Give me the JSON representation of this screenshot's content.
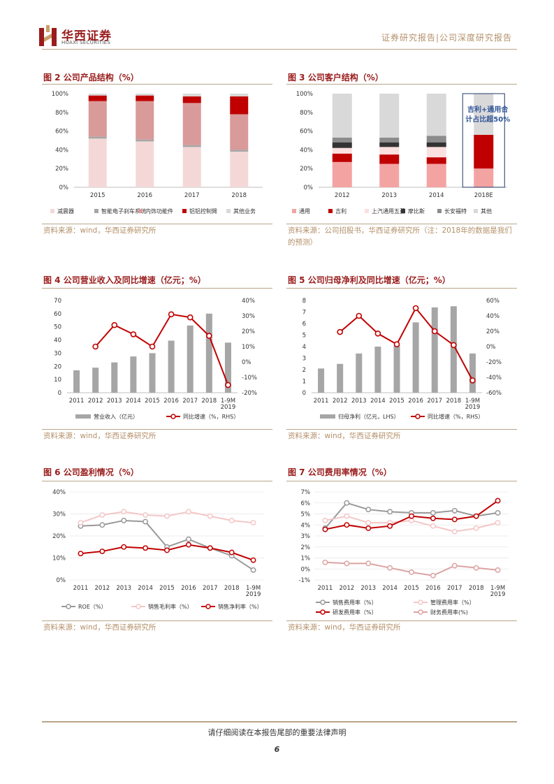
{
  "header": {
    "logo_cn": "华西证券",
    "logo_en": "HUAXI SECURITIES",
    "right": "证券研究报告|公司深度研究报告"
  },
  "figures": [
    {
      "title": "图 2 公司产品结构（%）",
      "source": "资料来源：wind，华西证券研究所",
      "chart_data": {
        "type": "bar",
        "stacked": true,
        "categories": [
          "2015",
          "2016",
          "2017",
          "2018"
        ],
        "series": [
          {
            "name": "减震器",
            "values": [
              52,
              49,
              43,
              38
            ],
            "color": "#f4d8d8"
          },
          {
            "name": "智能电子刹车系统",
            "values": [
              2,
              2,
              2,
              2
            ],
            "color": "#a6a6a6"
          },
          {
            "name": "内饰功能件",
            "values": [
              38,
              41,
              45,
              38
            ],
            "color": "#d99a9a"
          },
          {
            "name": "铝铝控制臂",
            "values": [
              6,
              6,
              7,
              19
            ],
            "color": "#c00000"
          },
          {
            "name": "其他业务",
            "values": [
              2,
              2,
              3,
              3
            ],
            "color": "#d9d9d9"
          }
        ],
        "y_ticks": [
          "0%",
          "20%",
          "40%",
          "60%",
          "80%",
          "100%"
        ],
        "ylim": [
          0,
          100
        ]
      }
    },
    {
      "title": "图 3 公司客户结构（%）",
      "source": "资料来源：公司招股书，华西证券研究所（注：2018年的数据是我们的预测）",
      "annotation": "吉利+通用合计占比超50%",
      "chart_data": {
        "type": "bar",
        "stacked": true,
        "categories": [
          "2012",
          "2013",
          "2014",
          "2018E"
        ],
        "series": [
          {
            "name": "通用",
            "values": [
              27,
              25,
              25,
              20
            ],
            "color": "#f4a3a3"
          },
          {
            "name": "吉利",
            "values": [
              9,
              10,
              7,
              36
            ],
            "color": "#c00000"
          },
          {
            "name": "上汽通用五菱",
            "values": [
              6,
              8,
              11,
              0
            ],
            "color": "#fbe0e0"
          },
          {
            "name": "摩比斯",
            "values": [
              6,
              5,
              5,
              0
            ],
            "color": "#333333"
          },
          {
            "name": "长安福特",
            "values": [
              5,
              5,
              7,
              0
            ],
            "color": "#8c8c8c"
          },
          {
            "name": "其他",
            "values": [
              47,
              47,
              45,
              44
            ],
            "color": "#d9d9d9"
          }
        ],
        "y_ticks": [
          "0%",
          "20%",
          "40%",
          "60%",
          "80%",
          "100%"
        ],
        "ylim": [
          0,
          100
        ]
      }
    },
    {
      "title": "图 4 公司营业收入及同比增速（亿元；%）",
      "source": "资料来源：wind，华西证券研究所",
      "chart_data": {
        "type": "bar",
        "categories": [
          "2011",
          "2012",
          "2013",
          "2014",
          "2015",
          "2016",
          "2017",
          "2018",
          "1-9M 2019"
        ],
        "bar_series": {
          "name": "营业收入（亿元）",
          "values": [
            17,
            19,
            23,
            27.5,
            30,
            39.5,
            51,
            60,
            38
          ]
        },
        "line_series": {
          "name": "同比增速（%，RHS）",
          "values": [
            null,
            10,
            24,
            18,
            10,
            31,
            29,
            17,
            -15
          ]
        },
        "y_left_ticks": [
          "0",
          "10",
          "20",
          "30",
          "40",
          "50",
          "60",
          "70"
        ],
        "y_right_ticks": [
          "-20%",
          "-10%",
          "0%",
          "10%",
          "20%",
          "30%",
          "40%"
        ],
        "ylim_left": [
          0,
          70
        ],
        "ylim_right": [
          -20,
          40
        ]
      }
    },
    {
      "title": "图 5 公司归母净利及同比增速（亿元；%）",
      "source": "资料来源：wind，华西证券研究所",
      "chart_data": {
        "type": "bar",
        "categories": [
          "2011",
          "2012",
          "2013",
          "2014",
          "2015",
          "2016",
          "2017",
          "2018",
          "1-9M 2019"
        ],
        "bar_series": {
          "name": "归母净利（亿元，LHS）",
          "values": [
            2.1,
            2.5,
            3.4,
            4.0,
            4.1,
            6.1,
            7.4,
            7.5,
            3.4
          ]
        },
        "line_series": {
          "name": "同比增速（%，RHS）",
          "values": [
            null,
            19,
            40,
            17,
            3,
            50,
            20,
            2,
            -44
          ]
        },
        "y_left_ticks": [
          "0",
          "1",
          "2",
          "3",
          "4",
          "5",
          "6",
          "7",
          "8"
        ],
        "y_right_ticks": [
          "-60%",
          "-40%",
          "-20%",
          "0%",
          "20%",
          "40%",
          "60%"
        ],
        "ylim_left": [
          0,
          8
        ],
        "ylim_right": [
          -60,
          60
        ]
      }
    },
    {
      "title": "图 6 公司盈利情况（%）",
      "source": "资料来源：wind，华西证券研究所",
      "chart_data": {
        "type": "line",
        "categories": [
          "2011",
          "2012",
          "2013",
          "2014",
          "2015",
          "2016",
          "2017",
          "2018",
          "1-9M 2019"
        ],
        "series": [
          {
            "name": "ROE（%）",
            "values": [
              24.5,
              25,
              27,
              26.5,
              15,
              18.5,
              14.5,
              11,
              4.5
            ],
            "color": "#999999"
          },
          {
            "name": "销售毛利率（%）",
            "values": [
              26,
              29.5,
              31,
              29.5,
              29,
              31,
              29,
              27,
              26
            ],
            "color": "#f4c7c7"
          },
          {
            "name": "销售净利率（%）",
            "values": [
              12,
              13,
              15,
              14.5,
              13.5,
              16,
              14.5,
              12.5,
              9
            ],
            "color": "#c00000"
          }
        ],
        "y_ticks": [
          "0%",
          "10%",
          "20%",
          "30%",
          "40%"
        ],
        "ylim": [
          0,
          40
        ]
      }
    },
    {
      "title": "图 7 公司费用率情况（%）",
      "source": "资料来源：wind，华西证券研究所",
      "chart_data": {
        "type": "line",
        "categories": [
          "2011",
          "2012",
          "2013",
          "2014",
          "2015",
          "2016",
          "2017",
          "2018",
          "1-9M 2019"
        ],
        "series": [
          {
            "name": "销售费用率（%）",
            "values": [
              3.7,
              6.0,
              5.4,
              5.2,
              5.1,
              5.1,
              5.3,
              4.8,
              5.1
            ],
            "color": "#999999"
          },
          {
            "name": "管理费用率（%）",
            "values": [
              4.4,
              4.8,
              4.2,
              4.2,
              4.4,
              3.9,
              3.4,
              3.7,
              4.2
            ],
            "color": "#f4c7c7"
          },
          {
            "name": "研发费用率（%）",
            "values": [
              3.6,
              4.0,
              3.7,
              3.9,
              4.8,
              4.6,
              4.5,
              4.8,
              6.2
            ],
            "color": "#c00000"
          },
          {
            "name": "财务费用率(%)",
            "values": [
              0.6,
              0.5,
              0.5,
              0.1,
              -0.3,
              -0.6,
              0.3,
              0.1,
              -0.1
            ],
            "color": "#dca3a3"
          }
        ],
        "y_ticks": [
          "-1%",
          "0%",
          "1%",
          "2%",
          "3%",
          "4%",
          "5%",
          "6%",
          "7%"
        ],
        "ylim": [
          -1,
          7
        ]
      }
    }
  ],
  "footer": {
    "disclaimer": "请仔细阅读在本报告尾部的重要法律声明",
    "page": "6"
  }
}
